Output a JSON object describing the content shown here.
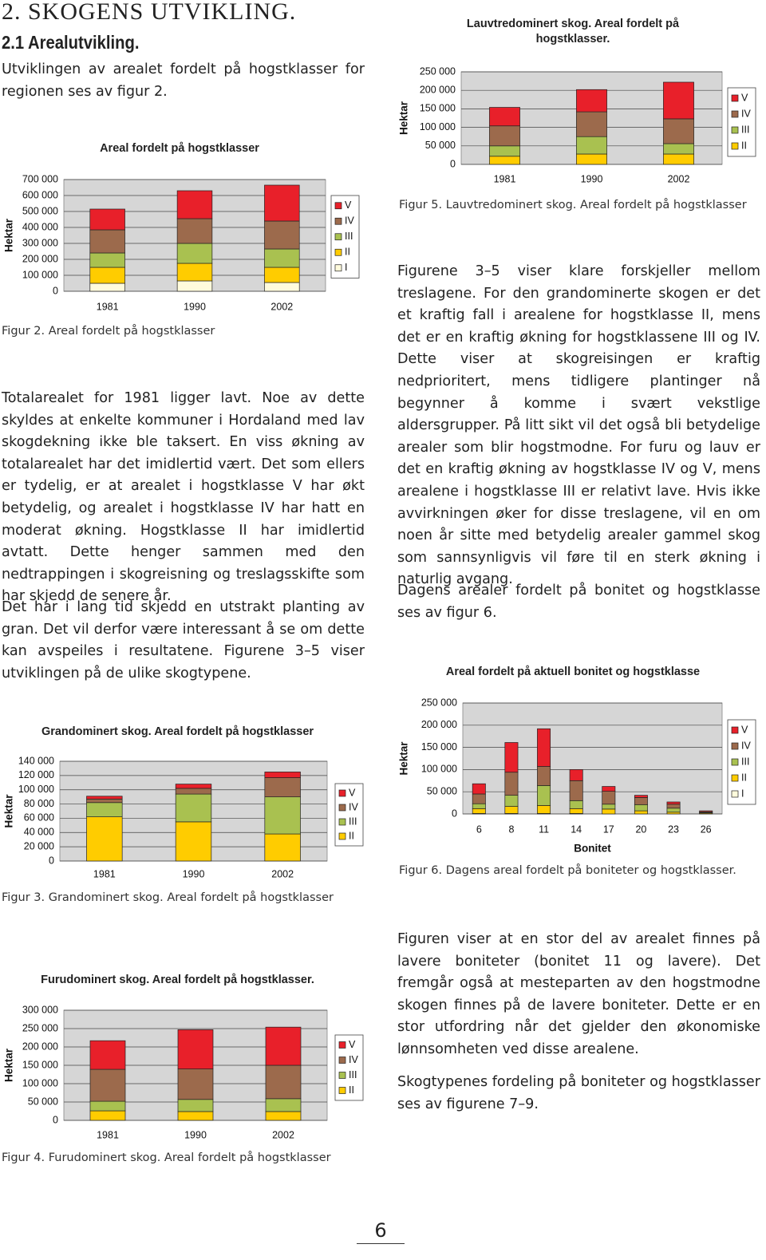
{
  "header": {
    "chapter": "2. SKOGENS UTVIKLING.",
    "section": "2.1 Arealutvikling."
  },
  "paragraphs": [
    "Utviklingen av arealet fordelt på hogstklasser for regionen ses av figur 2.",
    "Totalarealet for 1981 ligger lavt. Noe av dette skyldes at enkelte kommuner i Hordaland med lav skogdekning ikke ble taksert. En viss økning av totalarealet har det imidlertid vært. Det som ellers er tydelig, er at arealet i hogstklasse V har økt betydelig, og arealet i hogstklasse IV har hatt en moderat økning. Hogstklasse II har imidlertid avtatt. Dette henger sammen med den nedtrappingen i skogreisning og treslagsskifte som har skjedd de senere år.",
    "Det har i lang tid skjedd en utstrakt planting av gran. Det vil derfor være interessant å se om dette kan avspeiles i resultatene. Figurene 3–5 viser utviklingen på de ulike skogtypene.",
    "Figurene 3–5 viser klare forskjeller mellom treslagene. For den grandominerte skogen er det et kraftig fall i arealene for hogstklasse II, mens det er en kraftig økning for hogstklassene III og IV. Dette viser at skogreisingen er kraftig nedprioritert, mens tidligere plantinger nå begynner å komme i svært vekstlige aldersgrupper. På litt sikt vil det også bli betydelige arealer som blir hogstmodne. For furu og lauv er det en kraftig økning av hogstklasse IV og V, mens arealene i hogstklasse III er relativt lave. Hvis ikke avvirkningen øker for disse treslagene, vil en om noen år sitte med betydelig arealer gammel skog som sannsynligvis vil føre til en sterk økning i naturlig avgang.",
    "Dagens arealer fordelt på bonitet og hogstklasse ses av figur 6.",
    "Figuren viser at en stor del av arealet finnes på lavere boniteter (bonitet 11 og lavere). Det fremgår også at mesteparten av den hogstmodne skogen finnes på de lavere boniteter. Dette er en stor utfordring når det gjelder den økonomiske lønnsomheten ved disse arealene.",
    "Skogtypenes fordeling på boniteter og hogstklasser ses av figurene 7–9."
  ],
  "page_number": "6",
  "chart_data": [
    {
      "type": "bar",
      "stacked": true,
      "title": "Areal fordelt på hogstklasser",
      "ylabel": "Hektar",
      "caption": "Figur 2. Areal fordelt på hogstklasser",
      "categories": [
        "1981",
        "1990",
        "2002"
      ],
      "legend": "right",
      "grid": true,
      "series": [
        {
          "name": "I",
          "color": "#fffbdc",
          "values": [
            50000,
            65000,
            55000
          ]
        },
        {
          "name": "II",
          "color": "#ffcc00",
          "values": [
            100000,
            110000,
            95000
          ]
        },
        {
          "name": "III",
          "color": "#a9c150",
          "values": [
            90000,
            125000,
            115000
          ]
        },
        {
          "name": "IV",
          "color": "#9c6a4c",
          "values": [
            145000,
            155000,
            175000
          ]
        },
        {
          "name": "V",
          "color": "#e8202a",
          "values": [
            130000,
            175000,
            225000
          ]
        }
      ],
      "ylim": [
        0,
        700000
      ],
      "yticks": [
        0,
        {
          "value": 100000,
          "label": "100 000"
        },
        {
          "value": 200000,
          "label": "200 000"
        },
        {
          "value": 300000,
          "label": "300 000"
        },
        {
          "value": 400000,
          "label": "400 000"
        },
        {
          "value": 500000,
          "label": "500 000"
        },
        {
          "value": 600000,
          "label": "600 000"
        },
        {
          "value": 700000,
          "label": "700 000"
        }
      ]
    },
    {
      "type": "bar",
      "stacked": true,
      "title": "Grandominert skog. Areal fordelt på hogstklasser",
      "ylabel": "Hektar",
      "caption": "Figur 3. Grandominert skog. Areal fordelt på hogstklasser",
      "categories": [
        "1981",
        "1990",
        "2002"
      ],
      "legend": "right",
      "grid": true,
      "series": [
        {
          "name": "II",
          "color": "#ffcc00",
          "values": [
            62000,
            55000,
            38000
          ]
        },
        {
          "name": "III",
          "color": "#a9c150",
          "values": [
            20000,
            39000,
            52000
          ]
        },
        {
          "name": "IV",
          "color": "#9c6a4c",
          "values": [
            5000,
            8000,
            27000
          ]
        },
        {
          "name": "V",
          "color": "#e8202a",
          "values": [
            4000,
            6000,
            8000
          ]
        }
      ],
      "ylim": [
        0,
        140000
      ],
      "yticks": [
        0,
        {
          "value": 20000,
          "label": "20 000"
        },
        {
          "value": 40000,
          "label": "40 000"
        },
        {
          "value": 60000,
          "label": "60 000"
        },
        {
          "value": 80000,
          "label": "80 000"
        },
        {
          "value": 100000,
          "label": "100 000"
        },
        {
          "value": 120000,
          "label": "120 000"
        },
        {
          "value": 140000,
          "label": "140 000"
        }
      ]
    },
    {
      "type": "bar",
      "stacked": true,
      "title": "Furudominert skog. Areal fordelt på hogstklasser.",
      "ylabel": "Hektar",
      "caption": "Figur 4. Furudominert skog. Areal fordelt på hogstklasser",
      "categories": [
        "1981",
        "1990",
        "2002"
      ],
      "legend": "right",
      "grid": true,
      "series": [
        {
          "name": "II",
          "color": "#ffcc00",
          "values": [
            26000,
            24000,
            24000
          ]
        },
        {
          "name": "III",
          "color": "#a9c150",
          "values": [
            26000,
            33000,
            35000
          ]
        },
        {
          "name": "IV",
          "color": "#9c6a4c",
          "values": [
            87000,
            83000,
            91000
          ]
        },
        {
          "name": "V",
          "color": "#e8202a",
          "values": [
            78000,
            107000,
            104000
          ]
        }
      ],
      "ylim": [
        0,
        300000
      ],
      "yticks": [
        0,
        {
          "value": 50000,
          "label": "50 000"
        },
        {
          "value": 100000,
          "label": "100 000"
        },
        {
          "value": 150000,
          "label": "150 000"
        },
        {
          "value": 200000,
          "label": "200 000"
        },
        {
          "value": 250000,
          "label": "250 000"
        },
        {
          "value": 300000,
          "label": "300 000"
        }
      ]
    },
    {
      "type": "bar",
      "stacked": true,
      "title": "Lauvtredominert skog. Areal fordelt på hogstklasser.",
      "ylabel": "Hektar",
      "caption": "Figur 5. Lauvtredominert skog. Areal fordelt på hogstklasser",
      "categories": [
        "1981",
        "1990",
        "2002"
      ],
      "legend": "right",
      "grid": true,
      "series": [
        {
          "name": "II",
          "color": "#ffcc00",
          "values": [
            22000,
            28000,
            28000
          ]
        },
        {
          "name": "III",
          "color": "#a9c150",
          "values": [
            28000,
            47000,
            28000
          ]
        },
        {
          "name": "IV",
          "color": "#9c6a4c",
          "values": [
            54000,
            67000,
            67000
          ]
        },
        {
          "name": "V",
          "color": "#e8202a",
          "values": [
            50000,
            60000,
            99000
          ]
        }
      ],
      "ylim": [
        0,
        250000
      ],
      "yticks": [
        0,
        {
          "value": 50000,
          "label": "50 000"
        },
        {
          "value": 100000,
          "label": "100 000"
        },
        {
          "value": 150000,
          "label": "150 000"
        },
        {
          "value": 200000,
          "label": "200 000"
        },
        {
          "value": 250000,
          "label": "250 000"
        }
      ]
    },
    {
      "type": "bar",
      "stacked": true,
      "title": "Areal fordelt på aktuell bonitet og hogstklasse",
      "ylabel": "Hektar",
      "xlabel": "Bonitet",
      "caption": "Figur 6. Dagens areal fordelt på boniteter og hogstklasser.",
      "categories": [
        "6",
        "8",
        "11",
        "14",
        "17",
        "20",
        "23",
        "26"
      ],
      "legend": "right",
      "grid": true,
      "series": [
        {
          "name": "I",
          "color": "#fffbdc",
          "values": [
            1000,
            1000,
            1000,
            1000,
            0,
            0,
            0,
            0
          ]
        },
        {
          "name": "II",
          "color": "#ffcc00",
          "values": [
            11000,
            16000,
            18000,
            11000,
            11000,
            7000,
            4000,
            2000
          ]
        },
        {
          "name": "III",
          "color": "#a9c150",
          "values": [
            11000,
            25000,
            45000,
            18000,
            11000,
            14000,
            9000,
            1000
          ]
        },
        {
          "name": "IV",
          "color": "#9c6a4c",
          "values": [
            22000,
            52000,
            43000,
            45000,
            29000,
            16000,
            9000,
            2000
          ]
        },
        {
          "name": "V",
          "color": "#e8202a",
          "values": [
            23000,
            67000,
            85000,
            25000,
            11000,
            5000,
            5000,
            2000
          ]
        }
      ],
      "ylim": [
        0,
        250000
      ],
      "yticks": [
        0,
        {
          "value": 50000,
          "label": "50 000"
        },
        {
          "value": 100000,
          "label": "100 000"
        },
        {
          "value": 150000,
          "label": "150 000"
        },
        {
          "value": 200000,
          "label": "200 000"
        },
        {
          "value": 250000,
          "label": "250 000"
        }
      ]
    }
  ]
}
